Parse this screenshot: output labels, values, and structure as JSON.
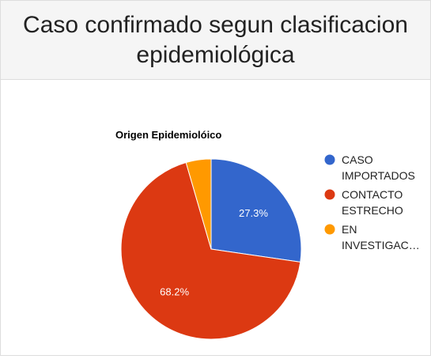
{
  "card": {
    "title": "Caso confirmado segun clasificacion epidemiológica"
  },
  "chart_data": {
    "type": "pie",
    "title": "Origen Epidemiolóico",
    "slices": [
      {
        "label": "CASO IMPORTADOS",
        "legend_lines": [
          "CASO",
          "IMPORTADOS"
        ],
        "value": 27.3,
        "display": "27.3%",
        "color": "#3366cc"
      },
      {
        "label": "CONTACTO ESTRECHO",
        "legend_lines": [
          "CONTACTO",
          "ESTRECHO"
        ],
        "value": 68.2,
        "display": "68.2%",
        "color": "#dc3912"
      },
      {
        "label": "EN INVESTIGAC…",
        "legend_lines": [
          "EN",
          "INVESTIGAC…"
        ],
        "value": 4.5,
        "display": "",
        "color": "#ff9900"
      }
    ],
    "legend_position": "right"
  }
}
